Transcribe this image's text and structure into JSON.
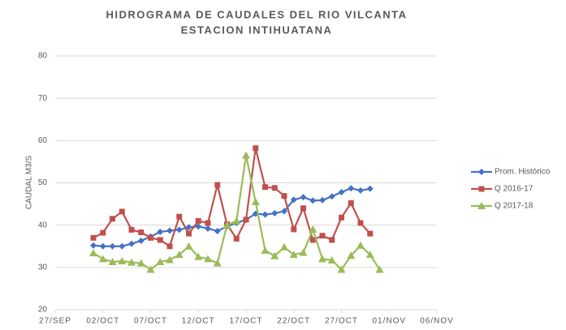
{
  "chart_data": {
    "type": "line",
    "title": "HIDROGRAMA DE CAUDALES DEL RIO VILCANTA",
    "subtitle": "ESTACION INTIHUATANA",
    "y_label": "CAUDAL M3/S",
    "x": [
      "01/OCT",
      "02/OCT",
      "03/OCT",
      "04/OCT",
      "05/OCT",
      "06/OCT",
      "07/OCT",
      "08/OCT",
      "09/OCT",
      "10/OCT",
      "11/OCT",
      "12/OCT",
      "13/OCT",
      "14/OCT",
      "15/OCT",
      "16/OCT",
      "17/OCT",
      "18/OCT",
      "19/OCT",
      "20/OCT",
      "21/OCT",
      "22/OCT",
      "23/OCT",
      "24/OCT",
      "25/OCT",
      "26/OCT",
      "27/OCT",
      "28/OCT",
      "29/OCT",
      "30/OCT",
      "31/OCT"
    ],
    "xlim": [
      "27/SEP",
      "06/NOV"
    ],
    "xticks": [
      "27/SEP",
      "02/OCT",
      "07/OCT",
      "12/OCT",
      "17/OCT",
      "22/OCT",
      "27/OCT",
      "01/NOV",
      "06/NOV"
    ],
    "ylim": [
      20,
      80
    ],
    "yticks": [
      20,
      30,
      40,
      50,
      60,
      70,
      80
    ],
    "grid": true,
    "legend": "right",
    "series": [
      {
        "name": "Prom. Histórico",
        "color": "#4472c4",
        "marker": "diamond",
        "values": [
          35.2,
          35,
          35,
          35,
          35.6,
          36.3,
          37.3,
          38.4,
          38.7,
          38.9,
          39.5,
          39.7,
          39.2,
          38.6,
          39.7,
          40.5,
          41.3,
          42.7,
          42.5,
          42.8,
          43.3,
          46,
          46.6,
          45.8,
          45.9,
          46.8,
          47.8,
          48.7,
          48.2,
          48.6,
          null
        ]
      },
      {
        "name": "Q 2016-17",
        "color": "#c0504d",
        "marker": "square",
        "values": [
          37,
          38.2,
          41.5,
          43.2,
          38.9,
          38.3,
          37,
          36.5,
          35,
          42,
          38,
          41,
          40.5,
          49.5,
          40.2,
          36.8,
          41.3,
          58.2,
          49,
          48.8,
          46.9,
          39,
          44,
          36.5,
          37.5,
          36.5,
          41.8,
          45.2,
          40.5,
          38,
          null
        ]
      },
      {
        "name": "Q 2017-18",
        "color": "#9bbb59",
        "marker": "triangle",
        "values": [
          33.4,
          32,
          31.3,
          31.5,
          31.2,
          31,
          29.5,
          31.3,
          31.8,
          33,
          35,
          32.5,
          32,
          31,
          40,
          41,
          56.5,
          45.5,
          34,
          32.7,
          34.8,
          33,
          33.5,
          39,
          32,
          31.7,
          29.5,
          32.8,
          35.2,
          33,
          29.5
        ]
      }
    ]
  }
}
